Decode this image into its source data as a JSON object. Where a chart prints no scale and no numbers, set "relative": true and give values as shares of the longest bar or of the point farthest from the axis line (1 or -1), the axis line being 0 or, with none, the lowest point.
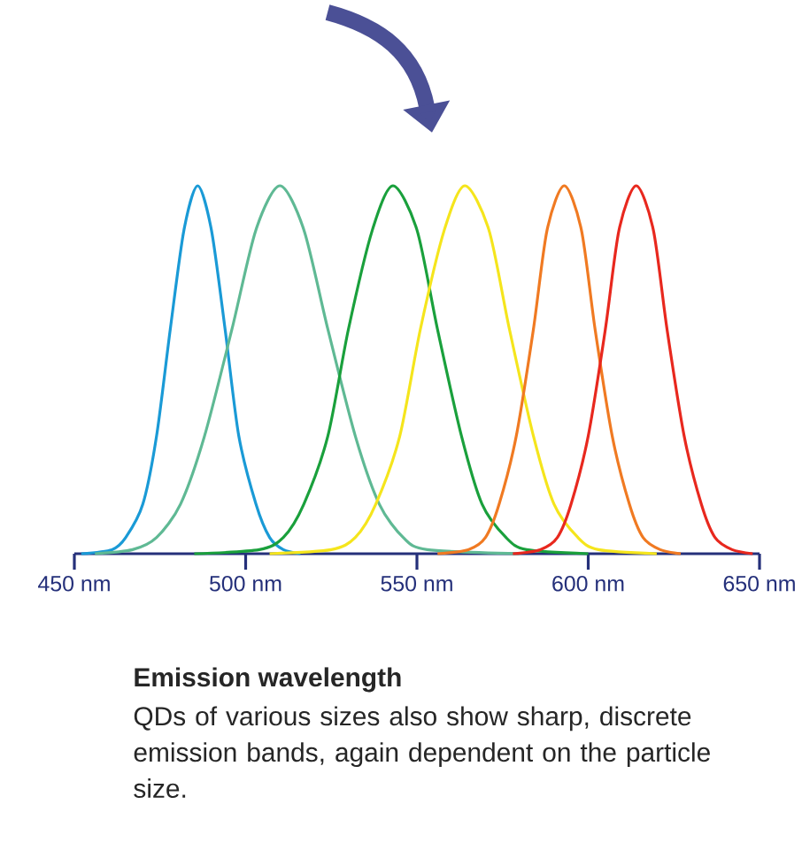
{
  "chart_data": {
    "type": "line",
    "relative": true,
    "xlim": [
      450,
      650
    ],
    "xticks": [
      {
        "value": 450,
        "label": "450 nm"
      },
      {
        "value": 500,
        "label": "500 nm"
      },
      {
        "value": 550,
        "label": "550 nm"
      },
      {
        "value": 600,
        "label": "600 nm"
      },
      {
        "value": 650,
        "label": "650 nm"
      }
    ],
    "series": [
      {
        "color": "#1a9ad6",
        "x": [
          452,
          461,
          465,
          470,
          474,
          478,
          482,
          486,
          490,
          494,
          498,
          503,
          507,
          511,
          516
        ],
        "values": [
          0,
          0.011,
          0.044,
          0.135,
          0.32,
          0.61,
          0.88,
          1,
          0.88,
          0.61,
          0.32,
          0.135,
          0.044,
          0.011,
          0
        ]
      },
      {
        "color": "#5fb994",
        "x": [
          456,
          467,
          474,
          481,
          488,
          496,
          503,
          510,
          517,
          524,
          532,
          539,
          546,
          553,
          580
        ],
        "values": [
          0,
          0.011,
          0.044,
          0.135,
          0.32,
          0.61,
          0.88,
          1,
          0.88,
          0.61,
          0.32,
          0.135,
          0.044,
          0.011,
          0
        ]
      },
      {
        "color": "#1aa03c",
        "x": [
          485,
          504,
          511,
          517,
          524,
          530,
          537,
          543,
          550,
          556,
          563,
          569,
          576,
          582,
          600
        ],
        "values": [
          0,
          0.011,
          0.044,
          0.135,
          0.32,
          0.61,
          0.88,
          1,
          0.88,
          0.61,
          0.32,
          0.135,
          0.044,
          0.011,
          0
        ]
      },
      {
        "color": "#f5e51c",
        "x": [
          507,
          525,
          532,
          538,
          545,
          551,
          558,
          564,
          571,
          577,
          584,
          590,
          597,
          603,
          620
        ],
        "values": [
          0,
          0.011,
          0.044,
          0.135,
          0.32,
          0.61,
          0.88,
          1,
          0.88,
          0.61,
          0.32,
          0.135,
          0.044,
          0.011,
          0
        ]
      },
      {
        "color": "#f07a22",
        "x": [
          556,
          565,
          570,
          574,
          579,
          584,
          588,
          593,
          598,
          602,
          607,
          612,
          616,
          621,
          627
        ],
        "values": [
          0,
          0.011,
          0.044,
          0.135,
          0.32,
          0.61,
          0.88,
          1,
          0.88,
          0.61,
          0.32,
          0.135,
          0.044,
          0.011,
          0
        ]
      },
      {
        "color": "#e8281e",
        "x": [
          578,
          586,
          591,
          595,
          600,
          605,
          609,
          614,
          619,
          623,
          628,
          633,
          637,
          642,
          648
        ],
        "values": [
          0,
          0.011,
          0.044,
          0.135,
          0.32,
          0.61,
          0.88,
          1,
          0.88,
          0.61,
          0.32,
          0.135,
          0.044,
          0.011,
          0
        ]
      }
    ],
    "annotations": [
      "Emission wavelength",
      "QDs of various sizes also show sharp, discrete emission bands, again dependent on the particle size."
    ]
  }
}
